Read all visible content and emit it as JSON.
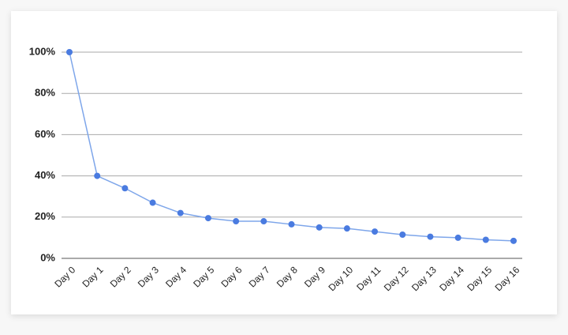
{
  "chart_data": {
    "type": "line",
    "categories": [
      "Day 0",
      "Day 1",
      "Day 2",
      "Day 3",
      "Day 4",
      "Day 5",
      "Day 6",
      "Day 7",
      "Day 8",
      "Day 9",
      "Day 10",
      "Day 11",
      "Day 12",
      "Day 13",
      "Day 14",
      "Day 15",
      "Day 16"
    ],
    "values": [
      100,
      40,
      34,
      27,
      22,
      19.5,
      18,
      18,
      16.5,
      15,
      14.5,
      13,
      11.5,
      10.5,
      10,
      9,
      8.5
    ],
    "color": "#4a7be0",
    "ylim": [
      0,
      100
    ],
    "yticks": [
      {
        "value": 0,
        "label": "0%"
      },
      {
        "value": 20,
        "label": "20%"
      },
      {
        "value": 40,
        "label": "40%"
      },
      {
        "value": 60,
        "label": "60%"
      },
      {
        "value": 80,
        "label": "80%"
      },
      {
        "value": 100,
        "label": "100%"
      }
    ],
    "grid": true
  }
}
